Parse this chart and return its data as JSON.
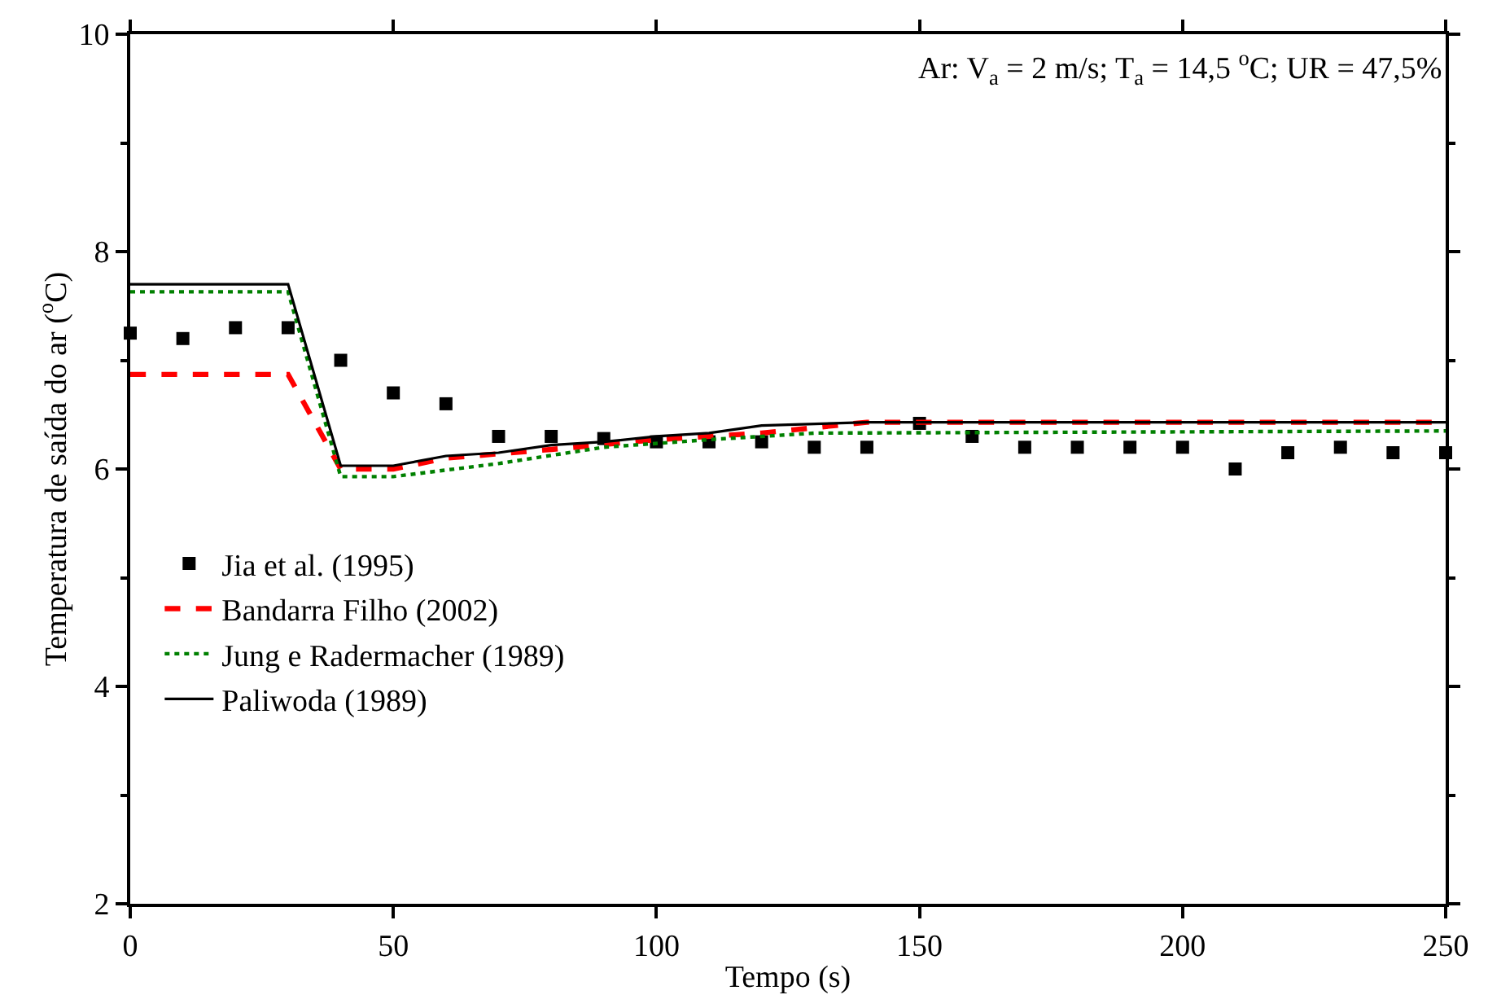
{
  "chart_data": {
    "type": "line",
    "xlabel": "Tempo (s)",
    "ylabel": "Temperatura de saída do ar ($^{o}$C)",
    "xlim": [
      0,
      250
    ],
    "ylim": [
      2,
      10
    ],
    "xticks": [
      0,
      50,
      100,
      150,
      200,
      250
    ],
    "yticks": [
      2,
      4,
      6,
      8,
      10
    ],
    "grid": false,
    "legend": "bottom left",
    "annotations": [
      "Ar: V$_{a}$ = 2 m/s; T$_{a}$ = 14,5 $^{o}$C; UR = 47,5%"
    ],
    "series": [
      {
        "name": "Jia et al. (1995)",
        "type": "scatter",
        "marker": "square",
        "color": "#000000",
        "x": [
          0,
          10,
          20,
          30,
          40,
          50,
          60,
          70,
          80,
          90,
          100,
          110,
          120,
          130,
          140,
          150,
          160,
          170,
          180,
          190,
          200,
          210,
          220,
          230,
          240,
          250
        ],
        "values": [
          7.25,
          7.2,
          7.3,
          7.3,
          7.0,
          6.7,
          6.6,
          6.3,
          6.3,
          6.28,
          6.25,
          6.25,
          6.25,
          6.2,
          6.2,
          6.42,
          6.3,
          6.2,
          6.2,
          6.2,
          6.2,
          6.0,
          6.15,
          6.2,
          6.15,
          6.15
        ]
      },
      {
        "name": "Bandarra Filho (2002)",
        "line_style": "dashed",
        "color": "#ff0000",
        "x": [
          0,
          30,
          40,
          50,
          60,
          80,
          100,
          120,
          140,
          250
        ],
        "values": [
          6.87,
          6.87,
          6.0,
          6.0,
          6.1,
          6.18,
          6.27,
          6.33,
          6.43,
          6.43
        ]
      },
      {
        "name": "Jung e Radermacher (1989)",
        "line_style": "dotted",
        "color": "#008000",
        "x": [
          0,
          30,
          40,
          50,
          70,
          90,
          110,
          130,
          250
        ],
        "values": [
          7.63,
          7.63,
          5.93,
          5.93,
          6.05,
          6.2,
          6.27,
          6.33,
          6.35
        ]
      },
      {
        "name": "Paliwoda (1989)",
        "line_style": "solid",
        "color": "#000000",
        "x": [
          0,
          30,
          40,
          50,
          60,
          70,
          80,
          90,
          100,
          110,
          120,
          140,
          250
        ],
        "values": [
          7.7,
          7.7,
          6.03,
          6.03,
          6.12,
          6.15,
          6.22,
          6.25,
          6.3,
          6.33,
          6.4,
          6.43,
          6.43
        ]
      }
    ]
  }
}
